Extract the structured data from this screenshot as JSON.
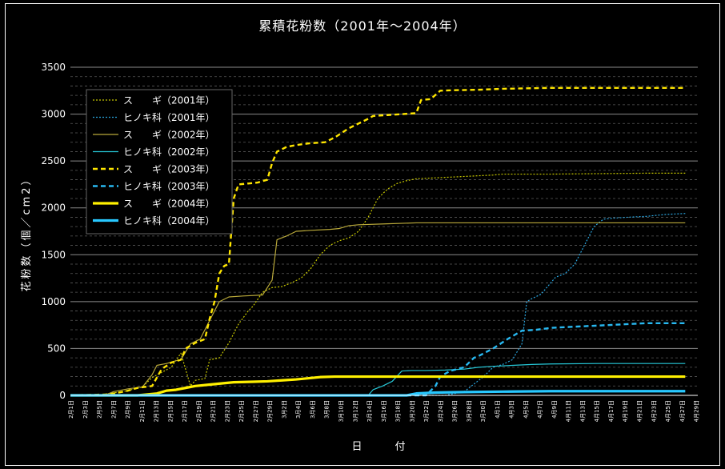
{
  "chart_data": {
    "type": "line",
    "title": "累積花粉数（2001年～2004年）",
    "xlabel": "日　付",
    "ylabel": "花粉数（個／cm2）",
    "ylim": [
      0,
      3500
    ],
    "yticks": [
      "0",
      "500",
      "1000",
      "1500",
      "2000",
      "2500",
      "3000",
      "3500"
    ],
    "grid": true,
    "legend_position": "top-left",
    "categories": [
      "2月1日",
      "2月3日",
      "2月5日",
      "2月7日",
      "2月9日",
      "2月11日",
      "2月13日",
      "2月15日",
      "2月17日",
      "2月19日",
      "2月21日",
      "2月23日",
      "2月25日",
      "2月27日",
      "2月29日",
      "3月2日",
      "3月4日",
      "3月6日",
      "3月8日",
      "3月10日",
      "3月12日",
      "3月14日",
      "3月16日",
      "3月18日",
      "3月20日",
      "3月22日",
      "3月24日",
      "3月26日",
      "3月28日",
      "3月30日",
      "4月1日",
      "4月3日",
      "4月5日",
      "4月7日",
      "4月9日",
      "4月11日",
      "4月13日",
      "4月15日",
      "4月17日",
      "4月19日",
      "4月21日",
      "4月23日",
      "4月25日",
      "4月27日",
      "4月29日"
    ],
    "series": [
      {
        "name": "ス　　ギ（2001年）",
        "color": "#c8c800",
        "style": "dotted",
        "width": 1.2,
        "points": [
          [
            0,
            0
          ],
          [
            6,
            0
          ],
          [
            8,
            20
          ],
          [
            11,
            40
          ],
          [
            15,
            90
          ],
          [
            17,
            190
          ],
          [
            21,
            300
          ],
          [
            23,
            450
          ],
          [
            25,
            100
          ],
          [
            26,
            160
          ],
          [
            28,
            180
          ],
          [
            29,
            380
          ],
          [
            31,
            400
          ],
          [
            33,
            560
          ],
          [
            35,
            760
          ],
          [
            37,
            900
          ],
          [
            38,
            950
          ],
          [
            40,
            1100
          ],
          [
            42,
            1150
          ],
          [
            44,
            1160
          ],
          [
            46,
            1200
          ],
          [
            48,
            1250
          ],
          [
            50,
            1350
          ],
          [
            52,
            1500
          ],
          [
            54,
            1600
          ],
          [
            56,
            1650
          ],
          [
            58,
            1680
          ],
          [
            60,
            1750
          ],
          [
            62,
            1900
          ],
          [
            64,
            2100
          ],
          [
            66,
            2200
          ],
          [
            68,
            2260
          ],
          [
            70,
            2290
          ],
          [
            72,
            2310
          ],
          [
            76,
            2320
          ],
          [
            80,
            2330
          ],
          [
            84,
            2340
          ],
          [
            88,
            2350
          ],
          [
            90,
            2360
          ],
          [
            100,
            2360
          ],
          [
            110,
            2365
          ],
          [
            120,
            2370
          ],
          [
            128,
            2370
          ]
        ]
      },
      {
        "name": "ヒノキ科（2001年）",
        "color": "#2aa6e0",
        "style": "dotted",
        "width": 1.2,
        "points": [
          [
            0,
            0
          ],
          [
            78,
            0
          ],
          [
            82,
            40
          ],
          [
            86,
            200
          ],
          [
            88,
            300
          ],
          [
            90,
            330
          ],
          [
            92,
            380
          ],
          [
            94,
            550
          ],
          [
            95,
            1000
          ],
          [
            96,
            1030
          ],
          [
            98,
            1080
          ],
          [
            100,
            1200
          ],
          [
            101,
            1260
          ],
          [
            103,
            1300
          ],
          [
            105,
            1400
          ],
          [
            107,
            1600
          ],
          [
            109,
            1800
          ],
          [
            111,
            1880
          ],
          [
            113,
            1890
          ],
          [
            116,
            1900
          ],
          [
            120,
            1910
          ],
          [
            124,
            1930
          ],
          [
            128,
            1940
          ]
        ]
      },
      {
        "name": "ス　　ギ（2002年）",
        "color": "#b8a83a",
        "style": "solid",
        "width": 1.2,
        "points": [
          [
            0,
            0
          ],
          [
            7,
            0
          ],
          [
            9,
            40
          ],
          [
            12,
            70
          ],
          [
            15,
            90
          ],
          [
            17,
            220
          ],
          [
            18,
            320
          ],
          [
            20,
            340
          ],
          [
            22,
            370
          ],
          [
            23,
            380
          ],
          [
            25,
            550
          ],
          [
            27,
            600
          ],
          [
            29,
            800
          ],
          [
            31,
            1000
          ],
          [
            33,
            1050
          ],
          [
            36,
            1060
          ],
          [
            40,
            1070
          ],
          [
            42,
            1230
          ],
          [
            43,
            1660
          ],
          [
            45,
            1700
          ],
          [
            47,
            1750
          ],
          [
            50,
            1760
          ],
          [
            54,
            1770
          ],
          [
            56,
            1780
          ],
          [
            58,
            1810
          ],
          [
            60,
            1820
          ],
          [
            66,
            1830
          ],
          [
            72,
            1840
          ],
          [
            80,
            1840
          ],
          [
            90,
            1840
          ],
          [
            100,
            1840
          ],
          [
            110,
            1840
          ],
          [
            128,
            1840
          ]
        ]
      },
      {
        "name": "ヒノキ科（2002年）",
        "color": "#26c8d8",
        "style": "solid",
        "width": 1.2,
        "points": [
          [
            0,
            0
          ],
          [
            62,
            0
          ],
          [
            63,
            60
          ],
          [
            65,
            100
          ],
          [
            67,
            150
          ],
          [
            69,
            260
          ],
          [
            71,
            265
          ],
          [
            74,
            265
          ],
          [
            78,
            270
          ],
          [
            82,
            280
          ],
          [
            85,
            300
          ],
          [
            88,
            310
          ],
          [
            92,
            320
          ],
          [
            96,
            330
          ],
          [
            100,
            335
          ],
          [
            110,
            340
          ],
          [
            128,
            340
          ]
        ]
      },
      {
        "name": "ス　　ギ（2003年）",
        "color": "#ffe600",
        "style": "dashed",
        "width": 2.4,
        "points": [
          [
            0,
            0
          ],
          [
            8,
            10
          ],
          [
            12,
            50
          ],
          [
            14,
            80
          ],
          [
            17,
            100
          ],
          [
            19,
            280
          ],
          [
            21,
            350
          ],
          [
            23,
            380
          ],
          [
            24,
            500
          ],
          [
            26,
            560
          ],
          [
            28,
            600
          ],
          [
            29,
            820
          ],
          [
            30,
            1000
          ],
          [
            31,
            1300
          ],
          [
            32,
            1380
          ],
          [
            33,
            1400
          ],
          [
            34,
            2100
          ],
          [
            35,
            2250
          ],
          [
            37,
            2260
          ],
          [
            39,
            2270
          ],
          [
            41,
            2300
          ],
          [
            42,
            2480
          ],
          [
            43,
            2600
          ],
          [
            45,
            2650
          ],
          [
            47,
            2670
          ],
          [
            50,
            2690
          ],
          [
            53,
            2700
          ],
          [
            55,
            2750
          ],
          [
            58,
            2850
          ],
          [
            60,
            2900
          ],
          [
            62,
            2950
          ],
          [
            63,
            2980
          ],
          [
            66,
            2990
          ],
          [
            69,
            3000
          ],
          [
            72,
            3010
          ],
          [
            73,
            3150
          ],
          [
            75,
            3160
          ],
          [
            77,
            3250
          ],
          [
            80,
            3255
          ],
          [
            85,
            3260
          ],
          [
            90,
            3270
          ],
          [
            95,
            3275
          ],
          [
            100,
            3280
          ],
          [
            128,
            3280
          ]
        ]
      },
      {
        "name": "ヒノキ科（2003年）",
        "color": "#28b8f0",
        "style": "dashed",
        "width": 2.4,
        "points": [
          [
            0,
            0
          ],
          [
            74,
            0
          ],
          [
            76,
            100
          ],
          [
            77,
            200
          ],
          [
            79,
            260
          ],
          [
            82,
            300
          ],
          [
            84,
            400
          ],
          [
            85,
            420
          ],
          [
            88,
            500
          ],
          [
            91,
            600
          ],
          [
            94,
            690
          ],
          [
            97,
            700
          ],
          [
            100,
            720
          ],
          [
            104,
            730
          ],
          [
            108,
            740
          ],
          [
            112,
            750
          ],
          [
            116,
            760
          ],
          [
            120,
            770
          ],
          [
            128,
            770
          ]
        ]
      },
      {
        "name": "ス　　ギ（2004年）",
        "color": "#fff000",
        "style": "solid",
        "width": 3.2,
        "points": [
          [
            0,
            0
          ],
          [
            14,
            0
          ],
          [
            18,
            20
          ],
          [
            20,
            50
          ],
          [
            22,
            60
          ],
          [
            24,
            80
          ],
          [
            26,
            100
          ],
          [
            28,
            110
          ],
          [
            32,
            130
          ],
          [
            34,
            140
          ],
          [
            38,
            145
          ],
          [
            41,
            150
          ],
          [
            44,
            160
          ],
          [
            47,
            170
          ],
          [
            49,
            180
          ],
          [
            52,
            195
          ],
          [
            55,
            200
          ],
          [
            60,
            200
          ],
          [
            70,
            200
          ],
          [
            128,
            200
          ]
        ]
      },
      {
        "name": "ヒノキ科（2004年）",
        "color": "#28c8ff",
        "style": "solid",
        "width": 3.2,
        "points": [
          [
            0,
            0
          ],
          [
            70,
            0
          ],
          [
            72,
            20
          ],
          [
            76,
            30
          ],
          [
            82,
            35
          ],
          [
            90,
            40
          ],
          [
            100,
            45
          ],
          [
            128,
            45
          ]
        ]
      }
    ]
  }
}
